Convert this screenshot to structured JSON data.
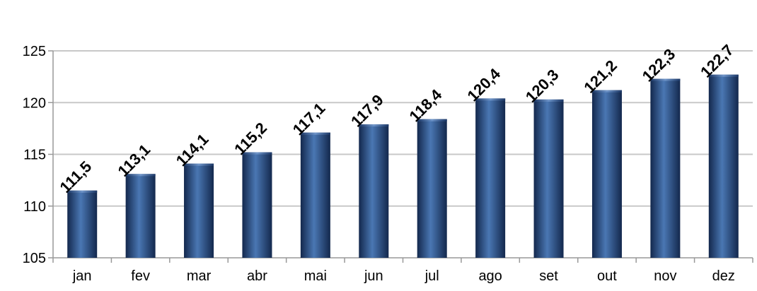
{
  "chart_data": {
    "type": "bar",
    "title": "",
    "xlabel": "",
    "ylabel": "",
    "categories": [
      "jan",
      "fev",
      "mar",
      "abr",
      "mai",
      "jun",
      "jul",
      "ago",
      "set",
      "out",
      "nov",
      "dez"
    ],
    "values": [
      111.5,
      113.1,
      114.1,
      115.2,
      117.1,
      117.9,
      118.4,
      120.4,
      120.3,
      121.2,
      122.3,
      122.7
    ],
    "data_labels": [
      "111,5",
      "113,1",
      "114,1",
      "115,2",
      "117,1",
      "117,9",
      "118,4",
      "120,4",
      "120,3",
      "121,2",
      "122,3",
      "122,7"
    ],
    "ylim": [
      105,
      125
    ],
    "yticks": [
      105,
      110,
      115,
      120,
      125
    ],
    "ytick_labels": [
      "105",
      "110",
      "115",
      "120",
      "125"
    ],
    "grid": true,
    "legend": "none",
    "colors": {
      "bar_dark": "#13284d",
      "bar_mid": "#2e5a94",
      "bar_light": "#4a77b3",
      "grid": "#c8c8c8"
    }
  }
}
